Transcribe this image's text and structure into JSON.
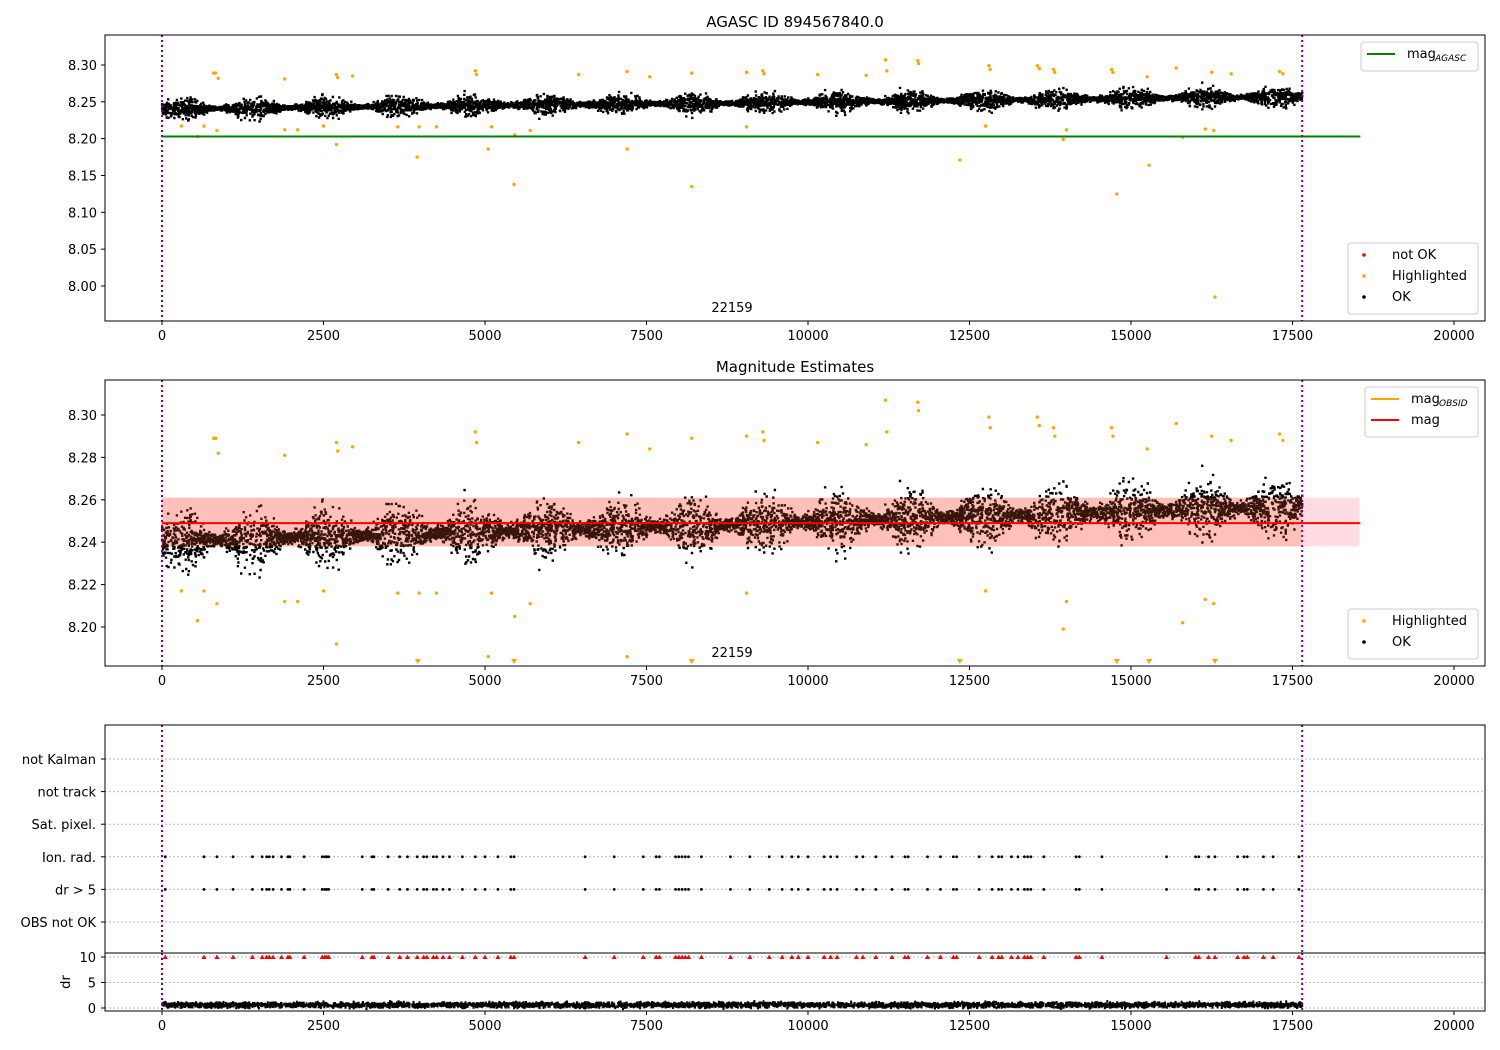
{
  "chart_data": [
    {
      "type": "scatter",
      "title": "AGASC ID 894567840.0",
      "xlim": [
        -880,
        20480
      ],
      "ylim": [
        7.9525,
        8.3407
      ],
      "xticks": [
        0,
        2500,
        5000,
        7500,
        10000,
        12500,
        15000,
        17500,
        20000
      ],
      "yticks": [
        "8.00",
        "8.05",
        "8.10",
        "8.15",
        "8.20",
        "8.25",
        "8.30"
      ],
      "annotation": "22159",
      "legend_top": [
        {
          "label": "mag",
          "sub": "AGASC",
          "color": "#008000"
        }
      ],
      "legend_bottom": [
        {
          "label": "not OK",
          "color": "#ff0000"
        },
        {
          "label": "Highlighted",
          "color": "#ffa500"
        },
        {
          "label": "OK",
          "color": "#000000"
        }
      ],
      "mag_agasc": 8.203,
      "xmax_line": 18550
    },
    {
      "type": "scatter",
      "title": "Magnitude Estimates",
      "xlim": [
        -880,
        20480
      ],
      "ylim": [
        8.1816,
        8.3165
      ],
      "xticks": [
        0,
        2500,
        5000,
        7500,
        10000,
        12500,
        15000,
        17500,
        20000
      ],
      "yticks": [
        "8.20",
        "8.22",
        "8.24",
        "8.26",
        "8.28",
        "8.30"
      ],
      "annotation": "22159",
      "legend_top": [
        {
          "label": "mag",
          "sub": "OBSID",
          "color": "#ffa500"
        },
        {
          "label": "mag",
          "sub": "",
          "color": "#ff0000"
        }
      ],
      "legend_bottom": [
        {
          "label": "Highlighted",
          "color": "#ffa500"
        },
        {
          "label": "OK",
          "color": "#000000"
        }
      ],
      "mag": 8.249,
      "mag_band": [
        8.238,
        8.261
      ],
      "below_range_x": [
        3960,
        5450,
        8200,
        12350,
        14780,
        15280,
        16300
      ]
    },
    {
      "type": "scatter",
      "categories": [
        "OBS not OK",
        "dr > 5",
        "Ion. rad.",
        "Sat. pixel.",
        "not track",
        "not Kalman"
      ],
      "flag_x": [
        50,
        650,
        850,
        1100,
        1400,
        1550,
        1620,
        1660,
        1720,
        1850,
        1950,
        1980,
        2200,
        2480,
        2520,
        2550,
        2580,
        3100,
        3250,
        3280,
        3500,
        3680,
        3800,
        3950,
        4050,
        4100,
        4200,
        4250,
        4350,
        4450,
        4650,
        4850,
        5000,
        5200,
        5400,
        5450,
        6550,
        7000,
        7450,
        7650,
        7700,
        7950,
        8000,
        8050,
        8100,
        8150,
        8350,
        8800,
        9100,
        9400,
        9600,
        9750,
        9850,
        10000,
        10250,
        10350,
        10450,
        10750,
        10850,
        11050,
        11300,
        11500,
        11550,
        11850,
        12050,
        12250,
        12300,
        12650,
        12850,
        12950,
        13000,
        13150,
        13250,
        13350,
        13400,
        13450,
        13650,
        14150,
        14200,
        14550,
        15550,
        16000,
        16050,
        16200,
        16300,
        16650,
        16750,
        16800,
        17050,
        17200,
        17600
      ],
      "flag_categories": [
        "dr > 5",
        "Ion. rad."
      ]
    },
    {
      "type": "scatter",
      "ylabel": "dr",
      "yticks": [
        "0",
        "5",
        "10"
      ],
      "ylim": [
        -0.8,
        10.5
      ],
      "dr_typical": 0.6,
      "dr_clipped": 10,
      "xticks": [
        "0",
        "2500",
        "5000",
        "7500",
        "10000",
        "12500",
        "15000",
        "17500",
        "20000"
      ]
    }
  ],
  "trend": {
    "x_start": 0,
    "x_end": 17650,
    "mag_start": 8.24,
    "mag_end": 8.257,
    "scatter": 0.007,
    "n_points": 7000
  },
  "highlighted": [
    [
      800,
      8.289
    ],
    [
      830,
      8.289
    ],
    [
      870,
      8.282
    ],
    [
      1900,
      8.281
    ],
    [
      2700,
      8.287
    ],
    [
      2720,
      8.283
    ],
    [
      2950,
      8.285
    ],
    [
      4850,
      8.292
    ],
    [
      4870,
      8.287
    ],
    [
      6450,
      8.287
    ],
    [
      7200,
      8.291
    ],
    [
      7550,
      8.284
    ],
    [
      8200,
      8.289
    ],
    [
      9050,
      8.29
    ],
    [
      9300,
      8.292
    ],
    [
      9320,
      8.288
    ],
    [
      10150,
      8.287
    ],
    [
      10900,
      8.286
    ],
    [
      11200,
      8.307
    ],
    [
      11220,
      8.292
    ],
    [
      11700,
      8.306
    ],
    [
      11710,
      8.302
    ],
    [
      12800,
      8.299
    ],
    [
      12820,
      8.294
    ],
    [
      13550,
      8.299
    ],
    [
      13580,
      8.295
    ],
    [
      13800,
      8.294
    ],
    [
      13820,
      8.29
    ],
    [
      14700,
      8.294
    ],
    [
      14720,
      8.29
    ],
    [
      15250,
      8.284
    ],
    [
      15700,
      8.296
    ],
    [
      16250,
      8.29
    ],
    [
      16550,
      8.288
    ],
    [
      17300,
      8.291
    ],
    [
      17350,
      8.288
    ],
    [
      300,
      8.217
    ],
    [
      550,
      8.203
    ],
    [
      650,
      8.217
    ],
    [
      850,
      8.211
    ],
    [
      1900,
      8.212
    ],
    [
      2100,
      8.212
    ],
    [
      2500,
      8.217
    ],
    [
      2700,
      8.192
    ],
    [
      3650,
      8.216
    ],
    [
      3950,
      8.175
    ],
    [
      3980,
      8.216
    ],
    [
      4250,
      8.216
    ],
    [
      5050,
      8.186
    ],
    [
      5100,
      8.216
    ],
    [
      5450,
      8.138
    ],
    [
      5460,
      8.205
    ],
    [
      5700,
      8.211
    ],
    [
      7200,
      8.186
    ],
    [
      8200,
      8.135
    ],
    [
      9050,
      8.216
    ],
    [
      12350,
      8.171
    ],
    [
      12750,
      8.217
    ],
    [
      13950,
      8.199
    ],
    [
      14000,
      8.212
    ],
    [
      14780,
      8.125
    ],
    [
      15280,
      8.164
    ],
    [
      15800,
      8.202
    ],
    [
      16150,
      8.213
    ],
    [
      16300,
      7.985
    ],
    [
      16280,
      8.211
    ]
  ]
}
